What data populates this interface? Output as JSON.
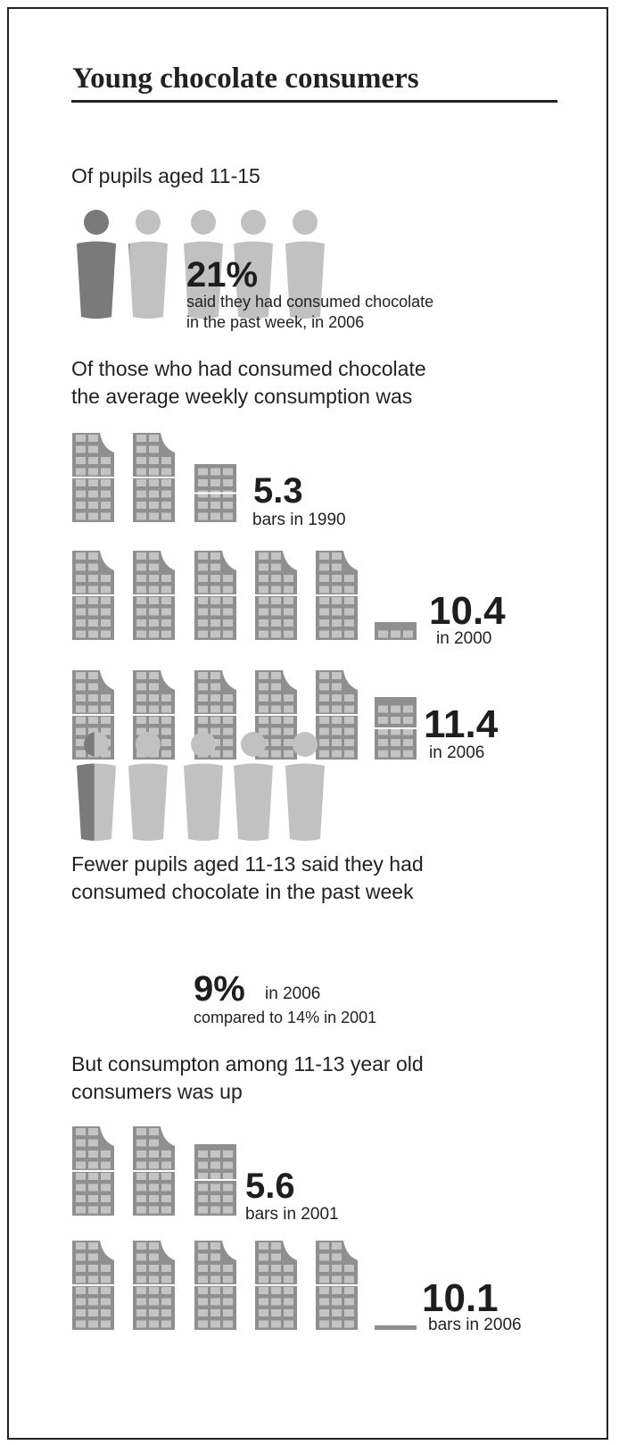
{
  "title": "Young chocolate consumers",
  "section_2006": {
    "intro": "Of pupils aged 11-15",
    "share_value": "21%",
    "share_caption_1": "said they had consumed chocolate",
    "share_caption_2": "in the past week, in 2006",
    "share_fraction": 0.21,
    "people_count": 5,
    "avg_intro_1": "Of those who had consumed chocolate",
    "avg_intro_2": "the average weekly consumption was",
    "rows": [
      {
        "value": "5.3",
        "caption": "bars in 1990",
        "bars": 5.3
      },
      {
        "value": "10.4",
        "caption": "in 2000",
        "bars": 10.4
      },
      {
        "value": "11.4",
        "caption": "in 2006",
        "bars": 11.4
      }
    ]
  },
  "section_11_13": {
    "intro_1": "Fewer pupils aged 11-13 said they had",
    "intro_2": "consumed chocolate in the past week",
    "share_value": "9%",
    "share_suffix": "in 2006",
    "share_caption": "compared to 14% in 2001",
    "share_fraction": 0.09,
    "people_count": 5,
    "avg_intro_1": "But consumpton among 11-13 year old",
    "avg_intro_2": "consumers was up",
    "rows": [
      {
        "value": "5.6",
        "caption": "bars in 2001",
        "bars": 5.6
      },
      {
        "value": "10.1",
        "caption": "bars in 2006",
        "bars": 10.1
      }
    ]
  },
  "colors": {
    "bar": "#8f8f8f",
    "bar_cell": "#c4c4c4",
    "person_highlight": "#7a7a7a",
    "person": "#c1c1c1",
    "text": "#1e1e1e"
  },
  "icons": {
    "person": "person-icon",
    "chocolate_bar": "chocolate-bar-icon"
  }
}
